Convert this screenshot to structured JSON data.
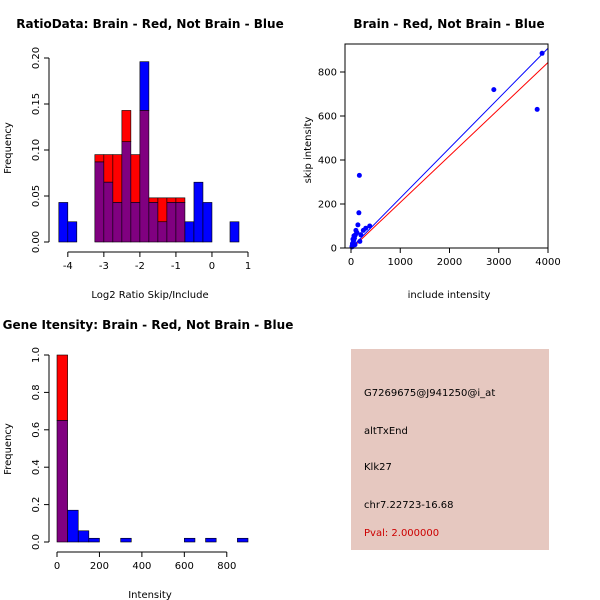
{
  "chart_data": [
    {
      "type": "bar",
      "subtype": "histogram-overlay",
      "title": "RatioData: Brain - Red, Not Brain - Blue",
      "xlabel": "Log2 Ratio Skip/Include",
      "ylabel": "Frequency",
      "xlim": [
        -4.3,
        1.0
      ],
      "ylim": [
        0,
        0.2
      ],
      "xticks": [
        "-4",
        "-3",
        "-2",
        "-1",
        "0",
        "1"
      ],
      "yticks": [
        "0.00",
        "0.05",
        "0.10",
        "0.15",
        "0.20"
      ],
      "bin_width": 0.25,
      "bin_starts": [
        -4.25,
        -4.0,
        -3.75,
        -3.5,
        -3.25,
        -3.0,
        -2.75,
        -2.5,
        -2.25,
        -2.0,
        -1.75,
        -1.5,
        -1.25,
        -1.0,
        -0.75,
        -0.5,
        -0.25,
        0.0,
        0.25,
        0.5,
        0.75
      ],
      "series": [
        {
          "name": "Brain",
          "color": "#ff0000",
          "values": [
            0,
            0,
            0,
            0,
            0.095,
            0.095,
            0.095,
            0.143,
            0.095,
            0.143,
            0.048,
            0.048,
            0.048,
            0.048,
            0,
            0,
            0,
            0,
            0,
            0,
            0
          ]
        },
        {
          "name": "Not Brain",
          "color": "#0000ff",
          "values": [
            0.043,
            0.022,
            0,
            0,
            0.087,
            0.065,
            0.043,
            0.109,
            0.043,
            0.196,
            0.043,
            0.022,
            0.043,
            0.043,
            0.022,
            0.065,
            0.043,
            0,
            0,
            0.022,
            0
          ]
        }
      ],
      "overlap_color": "#800080"
    },
    {
      "type": "scatter",
      "title": "Brain - Red, Not Brain - Blue",
      "xlabel": "include intensity",
      "ylabel": "skip intensity",
      "xlim": [
        0,
        4000
      ],
      "ylim": [
        0,
        900
      ],
      "xticks": [
        "0",
        "1000",
        "2000",
        "3000",
        "4000"
      ],
      "yticks": [
        "0",
        "200",
        "400",
        "600",
        "800"
      ],
      "points": [
        [
          3880,
          885
        ],
        [
          2900,
          720
        ],
        [
          3780,
          630
        ],
        [
          170,
          330
        ],
        [
          160,
          160
        ],
        [
          140,
          105
        ],
        [
          100,
          80
        ],
        [
          90,
          60
        ],
        [
          70,
          45
        ],
        [
          55,
          35
        ],
        [
          45,
          25
        ],
        [
          30,
          20
        ],
        [
          25,
          10
        ],
        [
          20,
          5
        ],
        [
          60,
          55
        ],
        [
          120,
          70
        ],
        [
          200,
          60
        ],
        [
          250,
          80
        ],
        [
          300,
          90
        ],
        [
          380,
          100
        ],
        [
          180,
          30
        ],
        [
          80,
          15
        ],
        [
          40,
          40
        ]
      ],
      "point_color": "#0000ff",
      "fit_lines": [
        {
          "name": "blue-fit",
          "color": "#0000ff",
          "slope": 0.227,
          "intercept": 0
        },
        {
          "name": "red-fit",
          "color": "#ff0000",
          "slope": 0.212,
          "intercept": -5
        }
      ]
    },
    {
      "type": "bar",
      "subtype": "histogram-overlay",
      "title": "Gene Itensity: Brain - Red, Not Brain - Blue",
      "xlabel": "Intensity",
      "ylabel": "Frequency",
      "xlim": [
        0,
        900
      ],
      "ylim": [
        0,
        1.0
      ],
      "xticks": [
        "0",
        "200",
        "400",
        "600",
        "800"
      ],
      "yticks": [
        "0.0",
        "0.2",
        "0.4",
        "0.6",
        "0.8",
        "1.0"
      ],
      "bin_width": 50,
      "bin_starts": [
        0,
        50,
        100,
        150,
        200,
        250,
        300,
        350,
        400,
        450,
        500,
        550,
        600,
        650,
        700,
        750,
        800,
        850
      ],
      "series": [
        {
          "name": "Brain",
          "color": "#ff0000",
          "values": [
            1.0,
            0,
            0,
            0,
            0,
            0,
            0,
            0,
            0,
            0,
            0,
            0,
            0,
            0,
            0,
            0,
            0,
            0
          ]
        },
        {
          "name": "Not Brain",
          "color": "#0000ff",
          "values": [
            0.65,
            0.17,
            0.06,
            0.02,
            0,
            0,
            0.02,
            0,
            0,
            0,
            0,
            0,
            0.02,
            0,
            0.02,
            0,
            0,
            0.02
          ]
        }
      ],
      "overlap_color": "#800080"
    }
  ],
  "info_panel": {
    "background": "#e6c8c0",
    "probe_id": "G7269675@J941250@i_at",
    "event_type": "altTxEnd",
    "gene": "Klk27",
    "location": "chr7.22723-16.68",
    "pval": "Pval: 2.000000",
    "pval_color": "#cc0000"
  }
}
